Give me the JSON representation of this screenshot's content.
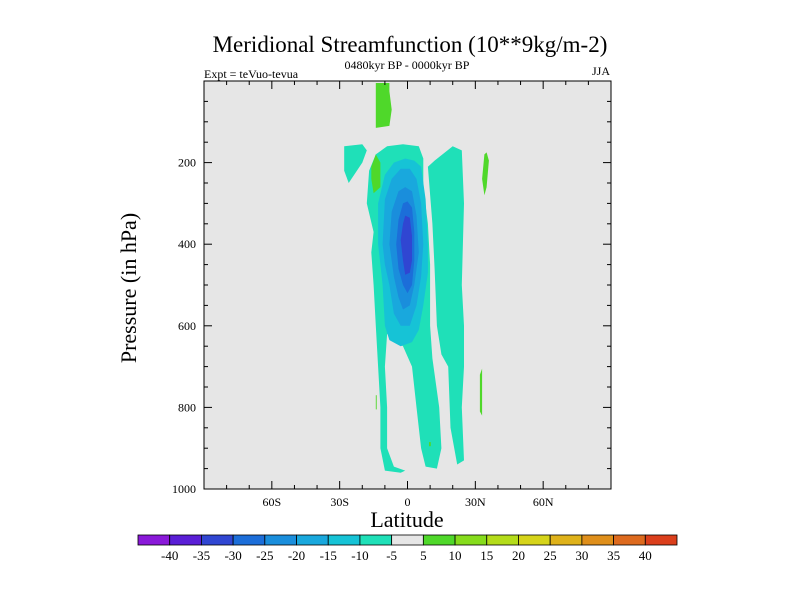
{
  "chart_data": {
    "type": "contour",
    "title": "Meridional Streamfunction (10**9kg/m-2)",
    "subtitle_center": "0480kyr BP - 0000kyr BP",
    "subtitle_left": "Expt = teVuo-tevua",
    "subtitle_right": "JJA",
    "xlabel": "Latitude",
    "ylabel": "Pressure (in hPa)",
    "xlim": [
      -90,
      90
    ],
    "ylim": [
      1000,
      0
    ],
    "x_ticks": [
      {
        "value": -60,
        "label": "60S"
      },
      {
        "value": -30,
        "label": "30S"
      },
      {
        "value": 0,
        "label": "0"
      },
      {
        "value": 30,
        "label": "30N"
      },
      {
        "value": 60,
        "label": "60N"
      }
    ],
    "y_ticks": [
      {
        "value": 200,
        "label": "200"
      },
      {
        "value": 400,
        "label": "400"
      },
      {
        "value": 600,
        "label": "600"
      },
      {
        "value": 800,
        "label": "800"
      },
      {
        "value": 1000,
        "label": "1000"
      }
    ],
    "background_color": "#e6e6e6",
    "contour_levels": [
      -40,
      -35,
      -30,
      -25,
      -20,
      -15,
      -10,
      -5,
      5,
      10,
      15,
      20,
      25,
      30,
      35,
      40
    ],
    "colorbar_colors": [
      "#8a19d9",
      "#5a1ed6",
      "#3046d2",
      "#1c6ed9",
      "#1a8edc",
      "#19a8dd",
      "#16c3d6",
      "#1fe0b8",
      "#e6e6e6",
      "#4fd82a",
      "#86dc1c",
      "#b4dc1a",
      "#d6d41a",
      "#dfb21a",
      "#df8f1b",
      "#dd6a1e",
      "#db3f1c"
    ],
    "regions": [
      {
        "level": -5,
        "polygon": [
          [
            -15,
            370
          ],
          [
            -18,
            300
          ],
          [
            -17,
            220
          ],
          [
            -14,
            180
          ],
          [
            -9,
            160
          ],
          [
            -2,
            155
          ],
          [
            5,
            160
          ],
          [
            7,
            190
          ],
          [
            7,
            260
          ],
          [
            9,
            350
          ],
          [
            10,
            450
          ],
          [
            10,
            600
          ],
          [
            11,
            680
          ],
          [
            14,
            800
          ],
          [
            15,
            900
          ],
          [
            13,
            950
          ],
          [
            8,
            945
          ],
          [
            6,
            900
          ],
          [
            4,
            800
          ],
          [
            2,
            700
          ],
          [
            -2,
            650
          ],
          [
            -6,
            630
          ],
          [
            -9,
            620
          ],
          [
            -10,
            700
          ],
          [
            -9,
            800
          ],
          [
            -9,
            900
          ],
          [
            -6,
            945
          ],
          [
            -1,
            955
          ],
          [
            -3,
            960
          ],
          [
            -10,
            955
          ],
          [
            -12,
            900
          ],
          [
            -12,
            800
          ],
          [
            -13,
            700
          ],
          [
            -14,
            600
          ],
          [
            -15,
            500
          ],
          [
            -16,
            420
          ]
        ]
      },
      {
        "level": -5,
        "polygon": [
          [
            -28,
            160
          ],
          [
            -20,
            155
          ],
          [
            -18,
            170
          ],
          [
            -20,
            200
          ],
          [
            -26,
            250
          ],
          [
            -28,
            220
          ]
        ]
      },
      {
        "level": -5,
        "polygon": [
          [
            9,
            210
          ],
          [
            12,
            195
          ],
          [
            20,
            160
          ],
          [
            24,
            170
          ],
          [
            25,
            300
          ],
          [
            24,
            500
          ],
          [
            25,
            600
          ],
          [
            25,
            700
          ],
          [
            24,
            800
          ],
          [
            25,
            930
          ],
          [
            22,
            940
          ],
          [
            19,
            850
          ],
          [
            18,
            700
          ],
          [
            15,
            670
          ],
          [
            13,
            600
          ],
          [
            12,
            460
          ],
          [
            11,
            350
          ]
        ]
      },
      {
        "level": -10,
        "polygon": [
          [
            -13,
            400
          ],
          [
            -13,
            300
          ],
          [
            -10,
            230
          ],
          [
            -6,
            200
          ],
          [
            -1,
            190
          ],
          [
            3,
            195
          ],
          [
            6,
            210
          ],
          [
            8,
            290
          ],
          [
            9,
            400
          ],
          [
            9,
            470
          ],
          [
            7,
            550
          ],
          [
            5,
            610
          ],
          [
            2,
            640
          ],
          [
            -3,
            650
          ],
          [
            -8,
            635
          ],
          [
            -10,
            600
          ],
          [
            -11,
            500
          ],
          [
            -12,
            450
          ]
        ]
      },
      {
        "level": -15,
        "polygon": [
          [
            -11,
            400
          ],
          [
            -10,
            290
          ],
          [
            -7,
            240
          ],
          [
            -3,
            215
          ],
          [
            1,
            215
          ],
          [
            4,
            240
          ],
          [
            6,
            300
          ],
          [
            7,
            400
          ],
          [
            6,
            480
          ],
          [
            4,
            550
          ],
          [
            1,
            600
          ],
          [
            -3,
            600
          ],
          [
            -6,
            570
          ],
          [
            -8,
            500
          ],
          [
            -10,
            450
          ]
        ]
      },
      {
        "level": -20,
        "polygon": [
          [
            -8,
            400
          ],
          [
            -7,
            320
          ],
          [
            -4,
            270
          ],
          [
            -1,
            260
          ],
          [
            2,
            270
          ],
          [
            4,
            330
          ],
          [
            5,
            420
          ],
          [
            3,
            500
          ],
          [
            1,
            550
          ],
          [
            -2,
            560
          ],
          [
            -4,
            530
          ],
          [
            -6,
            480
          ]
        ]
      },
      {
        "level": -25,
        "polygon": [
          [
            -5,
            400
          ],
          [
            -4,
            340
          ],
          [
            -2,
            300
          ],
          [
            0,
            295
          ],
          [
            2,
            310
          ],
          [
            3,
            370
          ],
          [
            3,
            440
          ],
          [
            2,
            500
          ],
          [
            0,
            520
          ],
          [
            -2,
            500
          ],
          [
            -4,
            460
          ]
        ]
      },
      {
        "level": -30,
        "polygon": [
          [
            -3,
            390
          ],
          [
            -2,
            350
          ],
          [
            -1,
            330
          ],
          [
            1,
            335
          ],
          [
            2,
            380
          ],
          [
            2,
            440
          ],
          [
            1,
            470
          ],
          [
            -1,
            475
          ],
          [
            -2,
            440
          ]
        ]
      },
      {
        "level": 5,
        "polygon": [
          [
            -14,
            5
          ],
          [
            -8,
            5
          ],
          [
            -8,
            25
          ],
          [
            -7,
            70
          ],
          [
            -8,
            110
          ],
          [
            -14,
            115
          ],
          [
            -14,
            70
          ]
        ]
      },
      {
        "level": 5,
        "polygon": [
          [
            -16,
            210
          ],
          [
            -14,
            180
          ],
          [
            -12,
            200
          ],
          [
            -12,
            260
          ],
          [
            -15,
            275
          ],
          [
            -16,
            240
          ]
        ]
      },
      {
        "level": 5,
        "polygon": [
          [
            34,
            180
          ],
          [
            35,
            175
          ],
          [
            36,
            195
          ],
          [
            35,
            260
          ],
          [
            34,
            280
          ],
          [
            33,
            240
          ]
        ]
      },
      {
        "level": 5,
        "polygon": [
          [
            32,
            720
          ],
          [
            33,
            705
          ],
          [
            33,
            760
          ],
          [
            33,
            820
          ],
          [
            32,
            810
          ]
        ]
      },
      {
        "level": 5,
        "polygon": [
          [
            -14,
            770
          ],
          [
            -13.6,
            770
          ],
          [
            -13.6,
            805
          ],
          [
            -14,
            805
          ]
        ]
      },
      {
        "level": 5,
        "polygon": [
          [
            9.5,
            885
          ],
          [
            10.3,
            885
          ],
          [
            10.3,
            895
          ],
          [
            9.5,
            895
          ]
        ]
      }
    ]
  }
}
